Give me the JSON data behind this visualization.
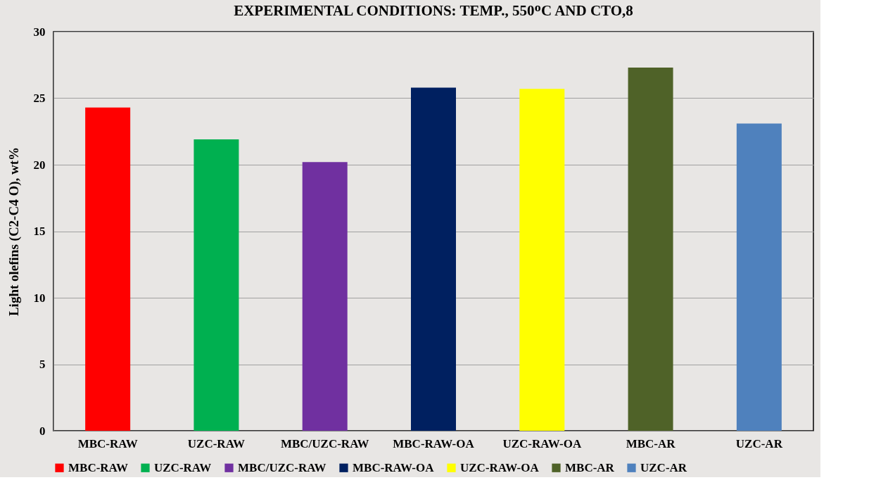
{
  "chart_data": {
    "type": "bar",
    "title": "EXPERIMENTAL  CONDITIONS: TEMP.,  550ᴼC AND CTO,8",
    "ylabel": "Light olefins  (C2-C4  O), wt%",
    "categories": [
      "MBC-RAW",
      "UZC-RAW",
      "MBC/UZC-RAW",
      "MBC-RAW-OA",
      "UZC-RAW-OA",
      "MBC-AR",
      "UZC-AR"
    ],
    "series": [
      {
        "name": "MBC-RAW",
        "color": "#ff0000",
        "values": [
          24.3,
          null,
          null,
          null,
          null,
          null,
          null
        ]
      },
      {
        "name": "UZC-RAW",
        "color": "#00b050",
        "values": [
          null,
          21.9,
          null,
          null,
          null,
          null,
          null
        ]
      },
      {
        "name": "MBC/UZC-RAW",
        "color": "#7030a0",
        "values": [
          null,
          null,
          20.2,
          null,
          null,
          null,
          null
        ]
      },
      {
        "name": "MBC-RAW-OA",
        "color": "#002060",
        "values": [
          null,
          null,
          null,
          25.8,
          null,
          null,
          null
        ]
      },
      {
        "name": "UZC-RAW-OA",
        "color": "#ffff00",
        "values": [
          null,
          null,
          null,
          null,
          25.7,
          null,
          null
        ]
      },
      {
        "name": "MBC-AR",
        "color": "#4f6228",
        "values": [
          null,
          null,
          null,
          null,
          null,
          27.3,
          null
        ]
      },
      {
        "name": "UZC-AR",
        "color": "#4f81bd",
        "values": [
          null,
          null,
          null,
          null,
          null,
          null,
          23.1
        ]
      }
    ],
    "ylim": [
      0,
      30
    ],
    "yticks": [
      0,
      5,
      10,
      15,
      20,
      25,
      30
    ],
    "grid": "y",
    "legend": "bottom"
  }
}
